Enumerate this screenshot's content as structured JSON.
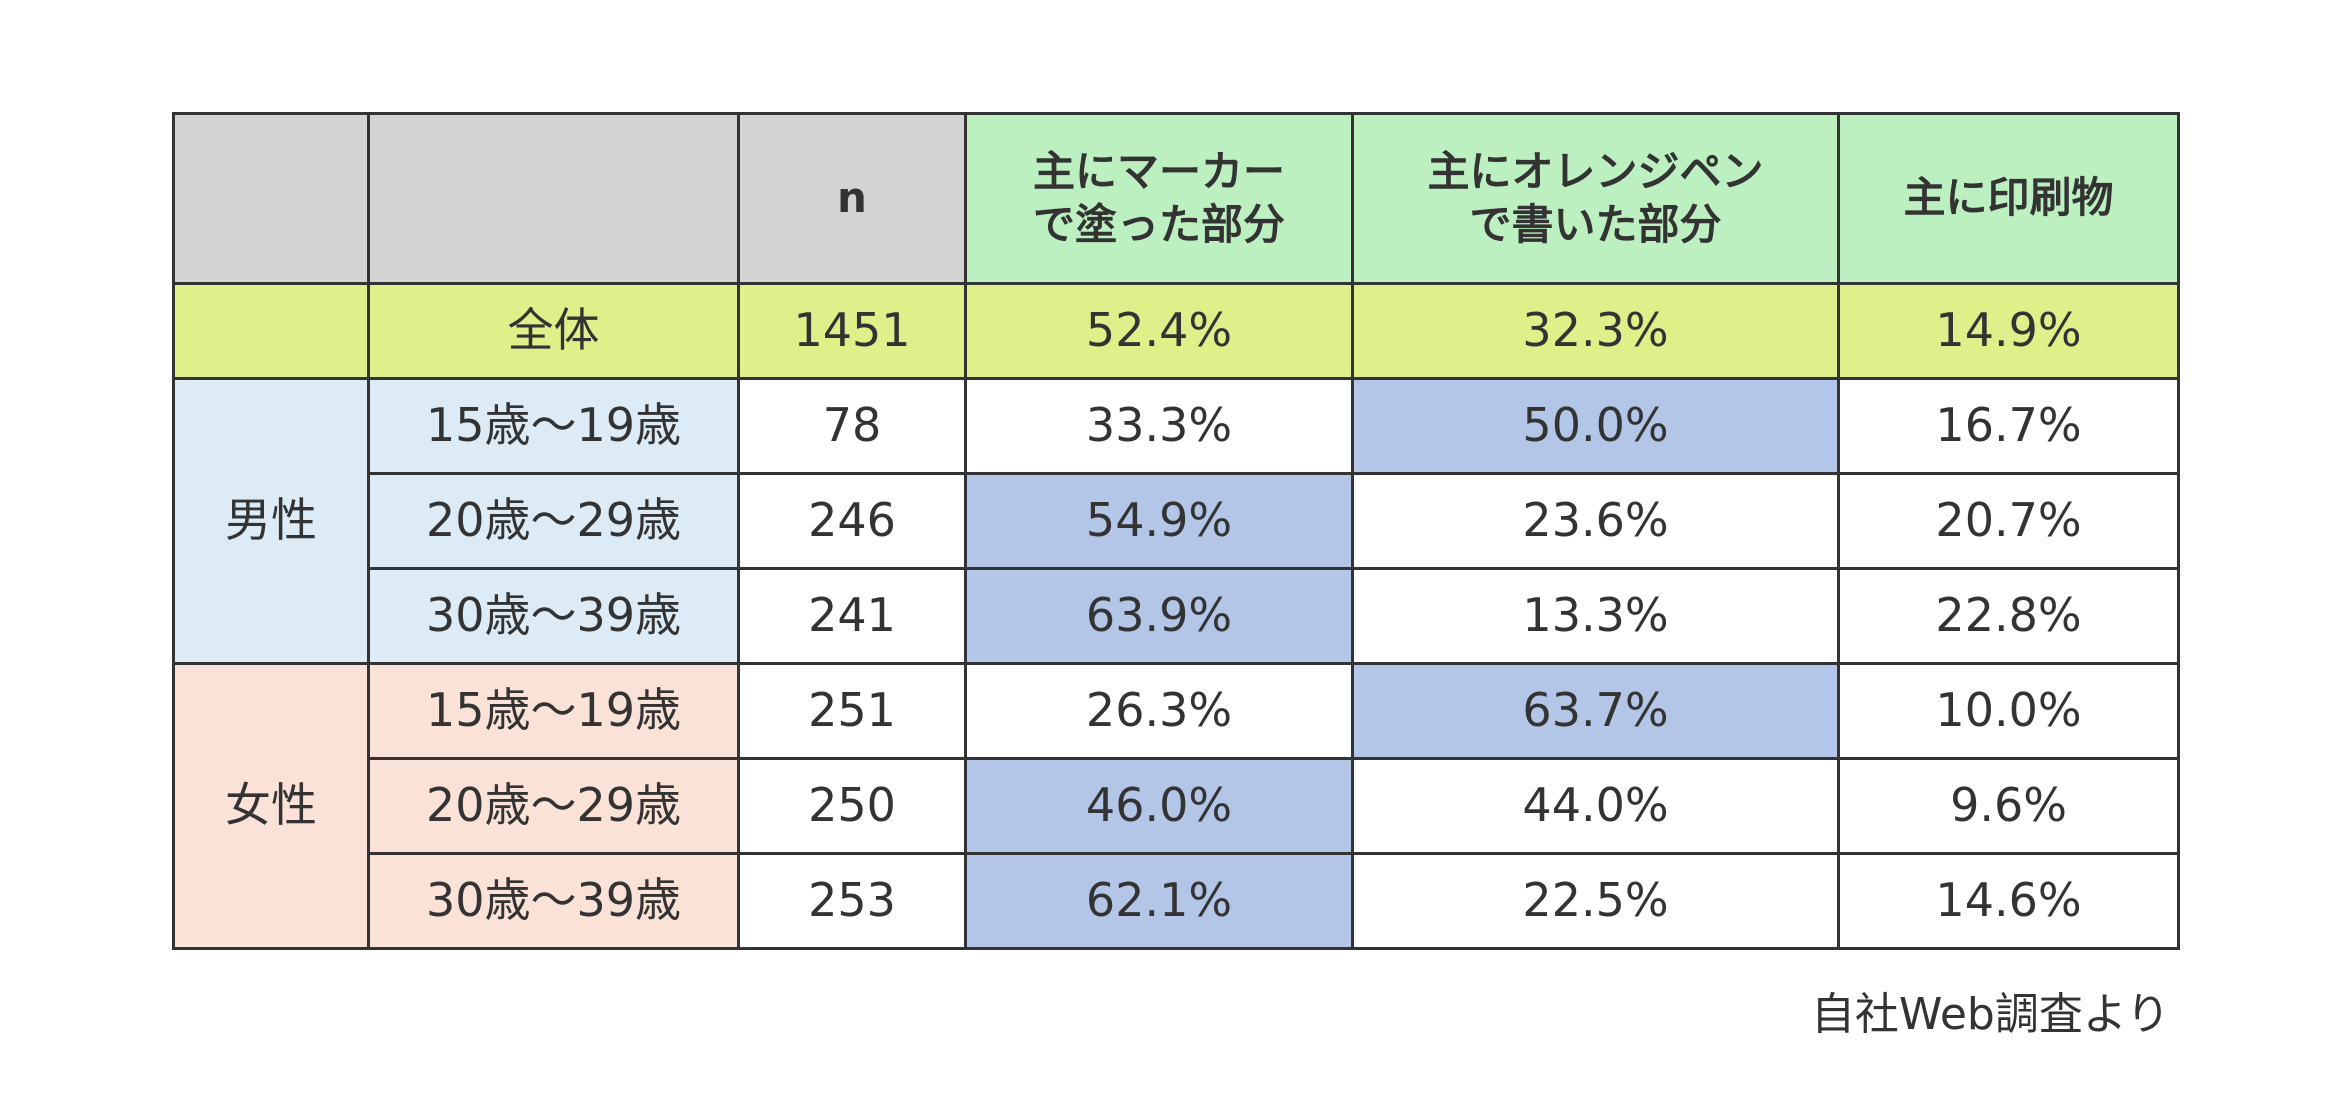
{
  "table": {
    "columns": [
      "",
      "",
      "n",
      "主にマーカー\nで塗った部分",
      "主にオレンジペン\nで書いた部分",
      "主に印刷物"
    ],
    "total": {
      "label": "全体",
      "n": "1451",
      "marker": "52.4%",
      "orange_pen": "32.3%",
      "print": "14.9%"
    },
    "groups": [
      {
        "label": "男性",
        "rows": [
          {
            "age": "15歳〜19歳",
            "n": "78",
            "marker": "33.3%",
            "orange_pen": "50.0%",
            "print": "16.7%",
            "highlight": "orange_pen"
          },
          {
            "age": "20歳〜29歳",
            "n": "246",
            "marker": "54.9%",
            "orange_pen": "23.6%",
            "print": "20.7%",
            "highlight": "marker"
          },
          {
            "age": "30歳〜39歳",
            "n": "241",
            "marker": "63.9%",
            "orange_pen": "13.3%",
            "print": "22.8%",
            "highlight": "marker"
          }
        ]
      },
      {
        "label": "女性",
        "rows": [
          {
            "age": "15歳〜19歳",
            "n": "251",
            "marker": "26.3%",
            "orange_pen": "63.7%",
            "print": "10.0%",
            "highlight": "orange_pen"
          },
          {
            "age": "20歳〜29歳",
            "n": "250",
            "marker": "46.0%",
            "orange_pen": "44.0%",
            "print": "9.6%",
            "highlight": "marker"
          },
          {
            "age": "30歳〜39歳",
            "n": "253",
            "marker": "62.1%",
            "orange_pen": "22.5%",
            "print": "14.6%",
            "highlight": "marker"
          }
        ]
      }
    ]
  },
  "source": "自社Web調査より",
  "colors": {
    "header_gray": "#d3d3d3",
    "header_green": "#bdf0c0",
    "total_row": "#dff08a",
    "male_group": "#dcebf6",
    "female_group": "#fbe2d8",
    "highlight": "#b4c6e7",
    "border": "#333333"
  },
  "chart_data": {
    "type": "table",
    "columns": [
      "",
      "",
      "n",
      "主にマーカーで塗った部分",
      "主にオレンジペンで書いた部分",
      "主に印刷物"
    ],
    "rows": [
      [
        "",
        "全体",
        1451,
        "52.4%",
        "32.3%",
        "14.9%"
      ],
      [
        "男性",
        "15歳〜19歳",
        78,
        "33.3%",
        "50.0%",
        "16.7%"
      ],
      [
        "男性",
        "20歳〜29歳",
        246,
        "54.9%",
        "23.6%",
        "20.7%"
      ],
      [
        "男性",
        "30歳〜39歳",
        241,
        "63.9%",
        "13.3%",
        "22.8%"
      ],
      [
        "女性",
        "15歳〜19歳",
        251,
        "26.3%",
        "63.7%",
        "10.0%"
      ],
      [
        "女性",
        "20歳〜29歳",
        250,
        "46.0%",
        "44.0%",
        "9.6%"
      ],
      [
        "女性",
        "30歳〜39歳",
        253,
        "62.1%",
        "22.5%",
        "14.6%"
      ]
    ]
  }
}
